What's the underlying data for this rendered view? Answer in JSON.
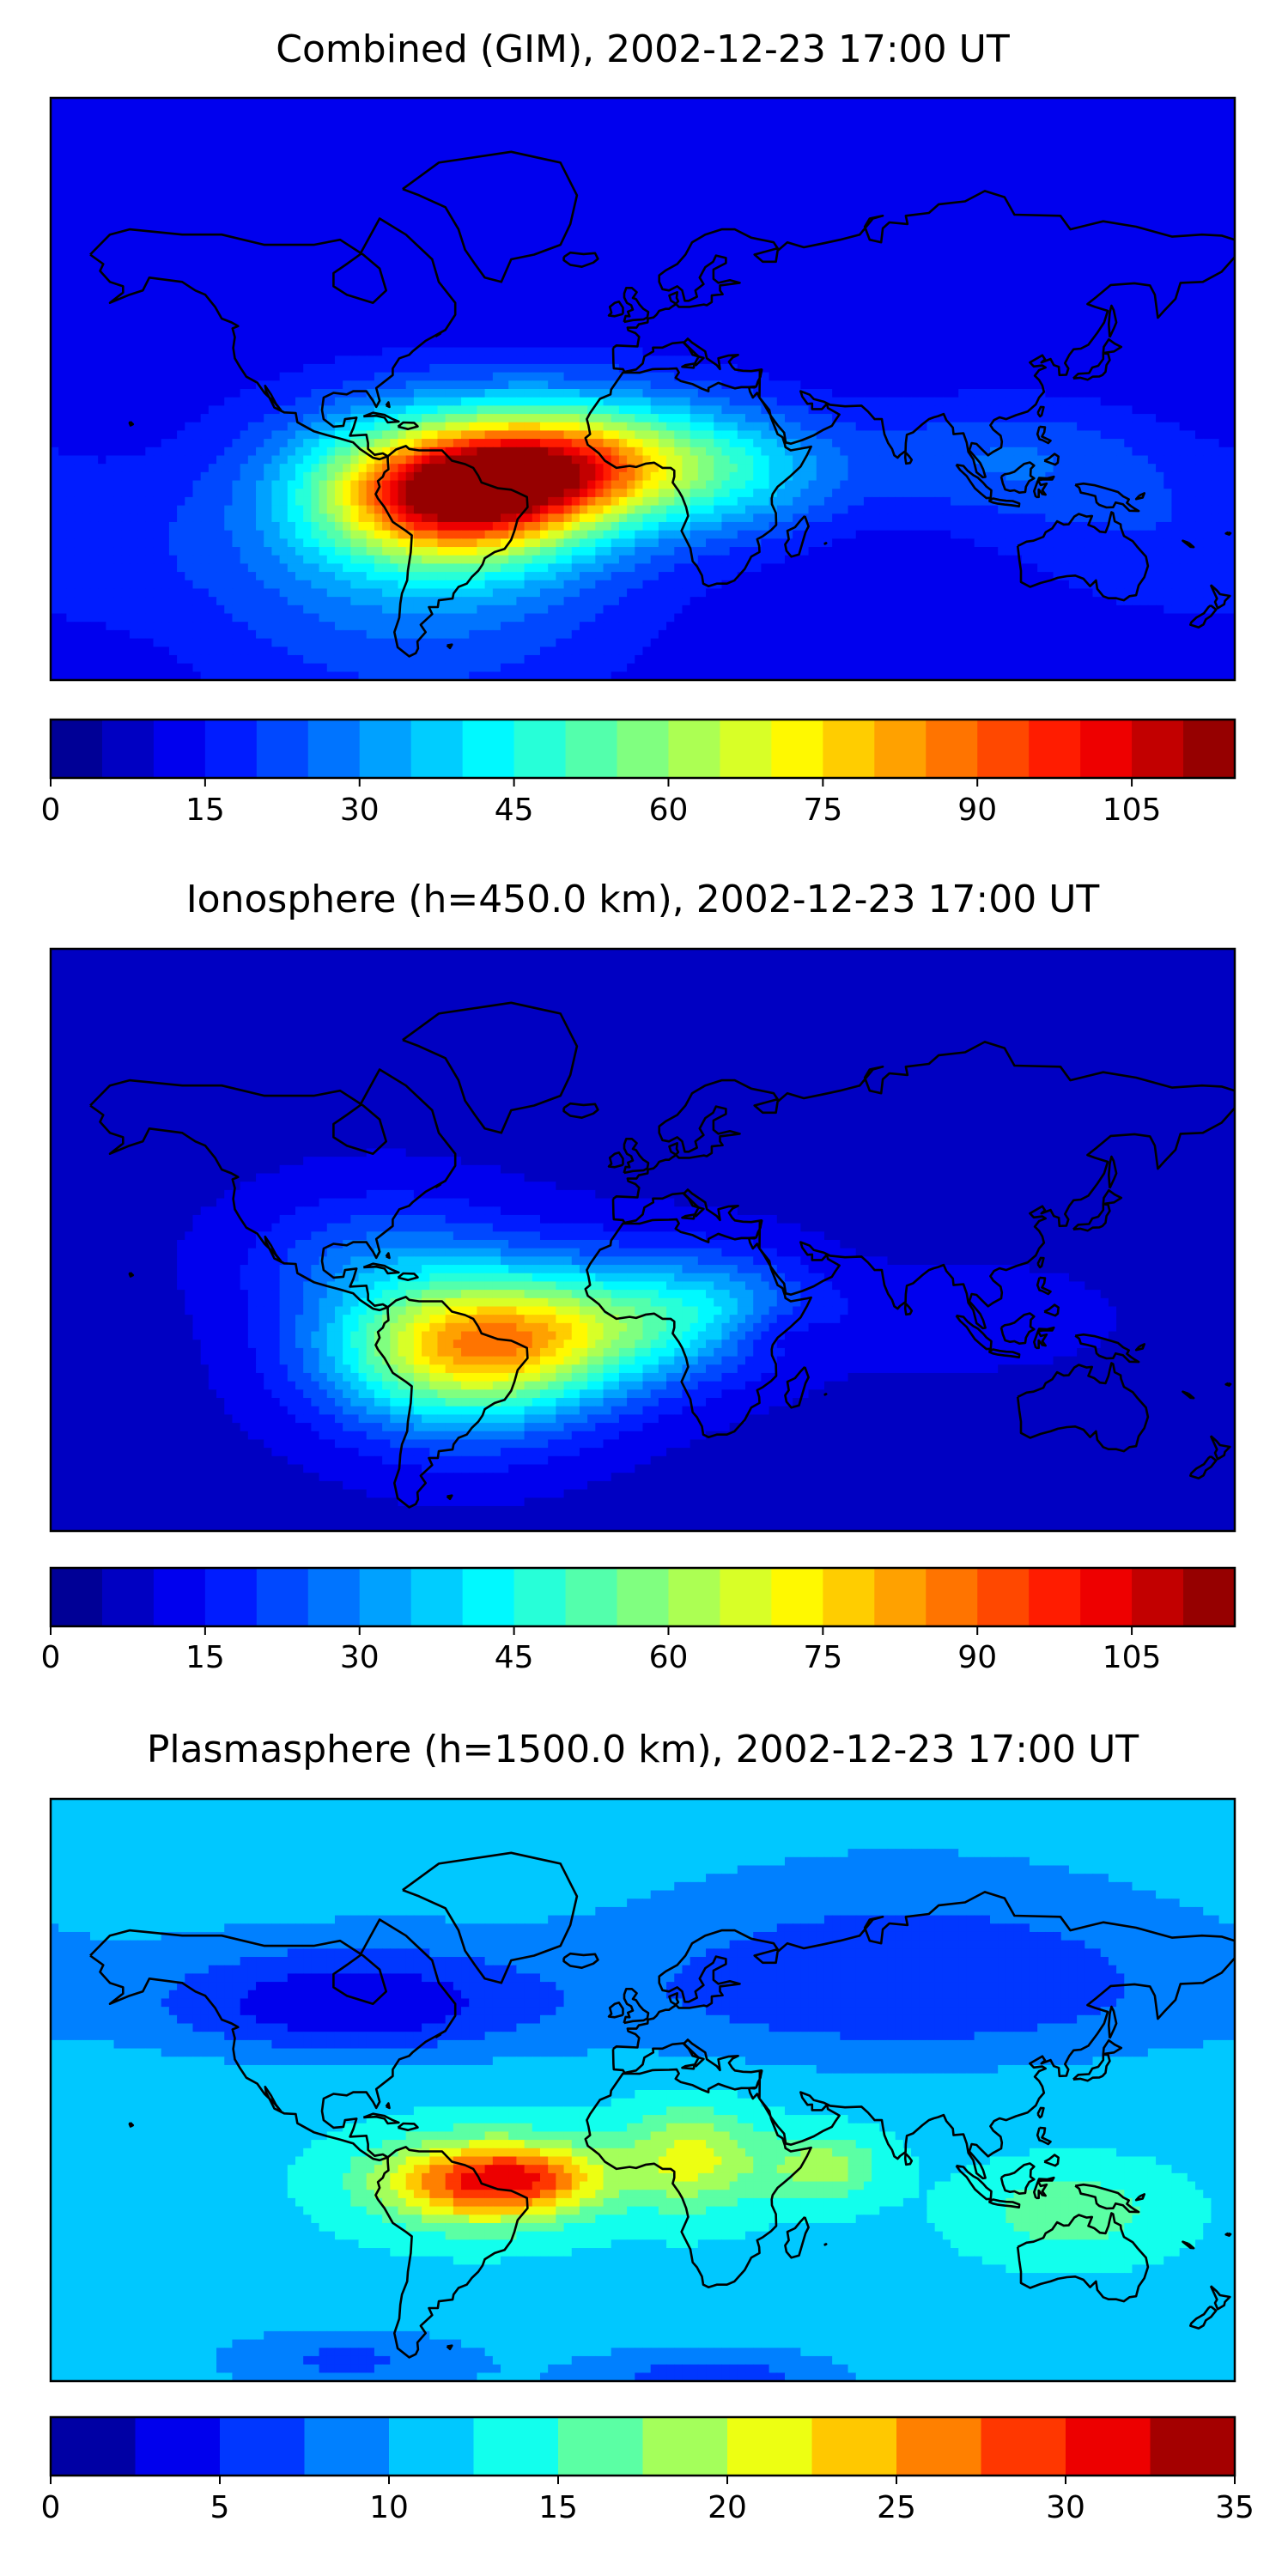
{
  "chart_data": [
    {
      "type": "heatmap",
      "title": "Combined (GIM), 2002-12-23 17:00 UT",
      "colorbar": {
        "ticks": [
          "0",
          "15",
          "30",
          "45",
          "60",
          "75",
          "90",
          "105"
        ],
        "range": [
          0,
          115
        ],
        "levels": 23,
        "level_step": 5
      },
      "field": {
        "background": 10,
        "blobs": [
          {
            "lon": -57,
            "lat": -5,
            "amp": 85,
            "slon": 28,
            "slat": 15
          },
          {
            "lon": -25,
            "lat": 5,
            "amp": 35,
            "slon": 25,
            "slat": 12
          },
          {
            "lon": -5,
            "lat": 8,
            "amp": 30,
            "slon": 35,
            "slat": 16
          },
          {
            "lon": 30,
            "lat": 0,
            "amp": 14,
            "slon": 22,
            "slat": 14
          },
          {
            "lon": -70,
            "lat": -25,
            "amp": 20,
            "slon": 50,
            "slat": 30
          },
          {
            "lon": -60,
            "lat": 18,
            "amp": 10,
            "slon": 40,
            "slat": 15
          },
          {
            "lon": 110,
            "lat": 8,
            "amp": 14,
            "slon": 35,
            "slat": 15
          },
          {
            "lon": 160,
            "lat": -20,
            "amp": 8,
            "slon": 40,
            "slat": 20
          }
        ]
      }
    },
    {
      "type": "heatmap",
      "title": "Ionosphere  (h=450.0 km), 2002-12-23 17:00 UT",
      "colorbar": {
        "ticks": [
          "0",
          "15",
          "30",
          "45",
          "60",
          "75",
          "90",
          "105"
        ],
        "range": [
          0,
          115
        ],
        "levels": 23,
        "level_step": 5
      },
      "field": {
        "background": 8,
        "blobs": [
          {
            "lon": -55,
            "lat": -8,
            "amp": 55,
            "slon": 30,
            "slat": 18
          },
          {
            "lon": -35,
            "lat": 0,
            "amp": 25,
            "slon": 30,
            "slat": 14
          },
          {
            "lon": 0,
            "lat": 5,
            "amp": 22,
            "slon": 30,
            "slat": 16
          },
          {
            "lon": 25,
            "lat": 10,
            "amp": 12,
            "slon": 20,
            "slat": 12
          },
          {
            "lon": -80,
            "lat": 25,
            "amp": 15,
            "slon": 30,
            "slat": 15
          },
          {
            "lon": 40,
            "lat": 0,
            "amp": -8,
            "slon": 10,
            "slat": 6
          },
          {
            "lon": 100,
            "lat": 5,
            "amp": 6,
            "slon": 30,
            "slat": 12
          }
        ]
      }
    },
    {
      "type": "heatmap",
      "title": "Plasmasphere (h=1500.0 km), 2002-12-23 17:00 UT",
      "colorbar": {
        "ticks": [
          "0",
          "5",
          "10",
          "15",
          "20",
          "25",
          "30",
          "35"
        ],
        "range": [
          0,
          35
        ],
        "levels": 14,
        "level_step": 2.5
      },
      "field": {
        "background": 12,
        "blobs": [
          {
            "lon": -50,
            "lat": 0,
            "amp": 17,
            "slon": 22,
            "slat": 10
          },
          {
            "lon": -30,
            "lat": 2,
            "amp": 6,
            "slon": 15,
            "slat": 8
          },
          {
            "lon": 15,
            "lat": 8,
            "amp": 9,
            "slon": 15,
            "slat": 12
          },
          {
            "lon": 55,
            "lat": 5,
            "amp": 7,
            "slon": 12,
            "slat": 8
          },
          {
            "lon": 130,
            "lat": -10,
            "amp": 5,
            "slon": 20,
            "slat": 10
          },
          {
            "lon": -90,
            "lat": 55,
            "amp": -9,
            "slon": 40,
            "slat": 10
          },
          {
            "lon": 80,
            "lat": 60,
            "amp": -7,
            "slon": 70,
            "slat": 15
          },
          {
            "lon": 20,
            "lat": -60,
            "amp": -6,
            "slon": 30,
            "slat": 6
          },
          {
            "lon": -90,
            "lat": -55,
            "amp": -5,
            "slon": 30,
            "slat": 6
          }
        ]
      }
    }
  ]
}
